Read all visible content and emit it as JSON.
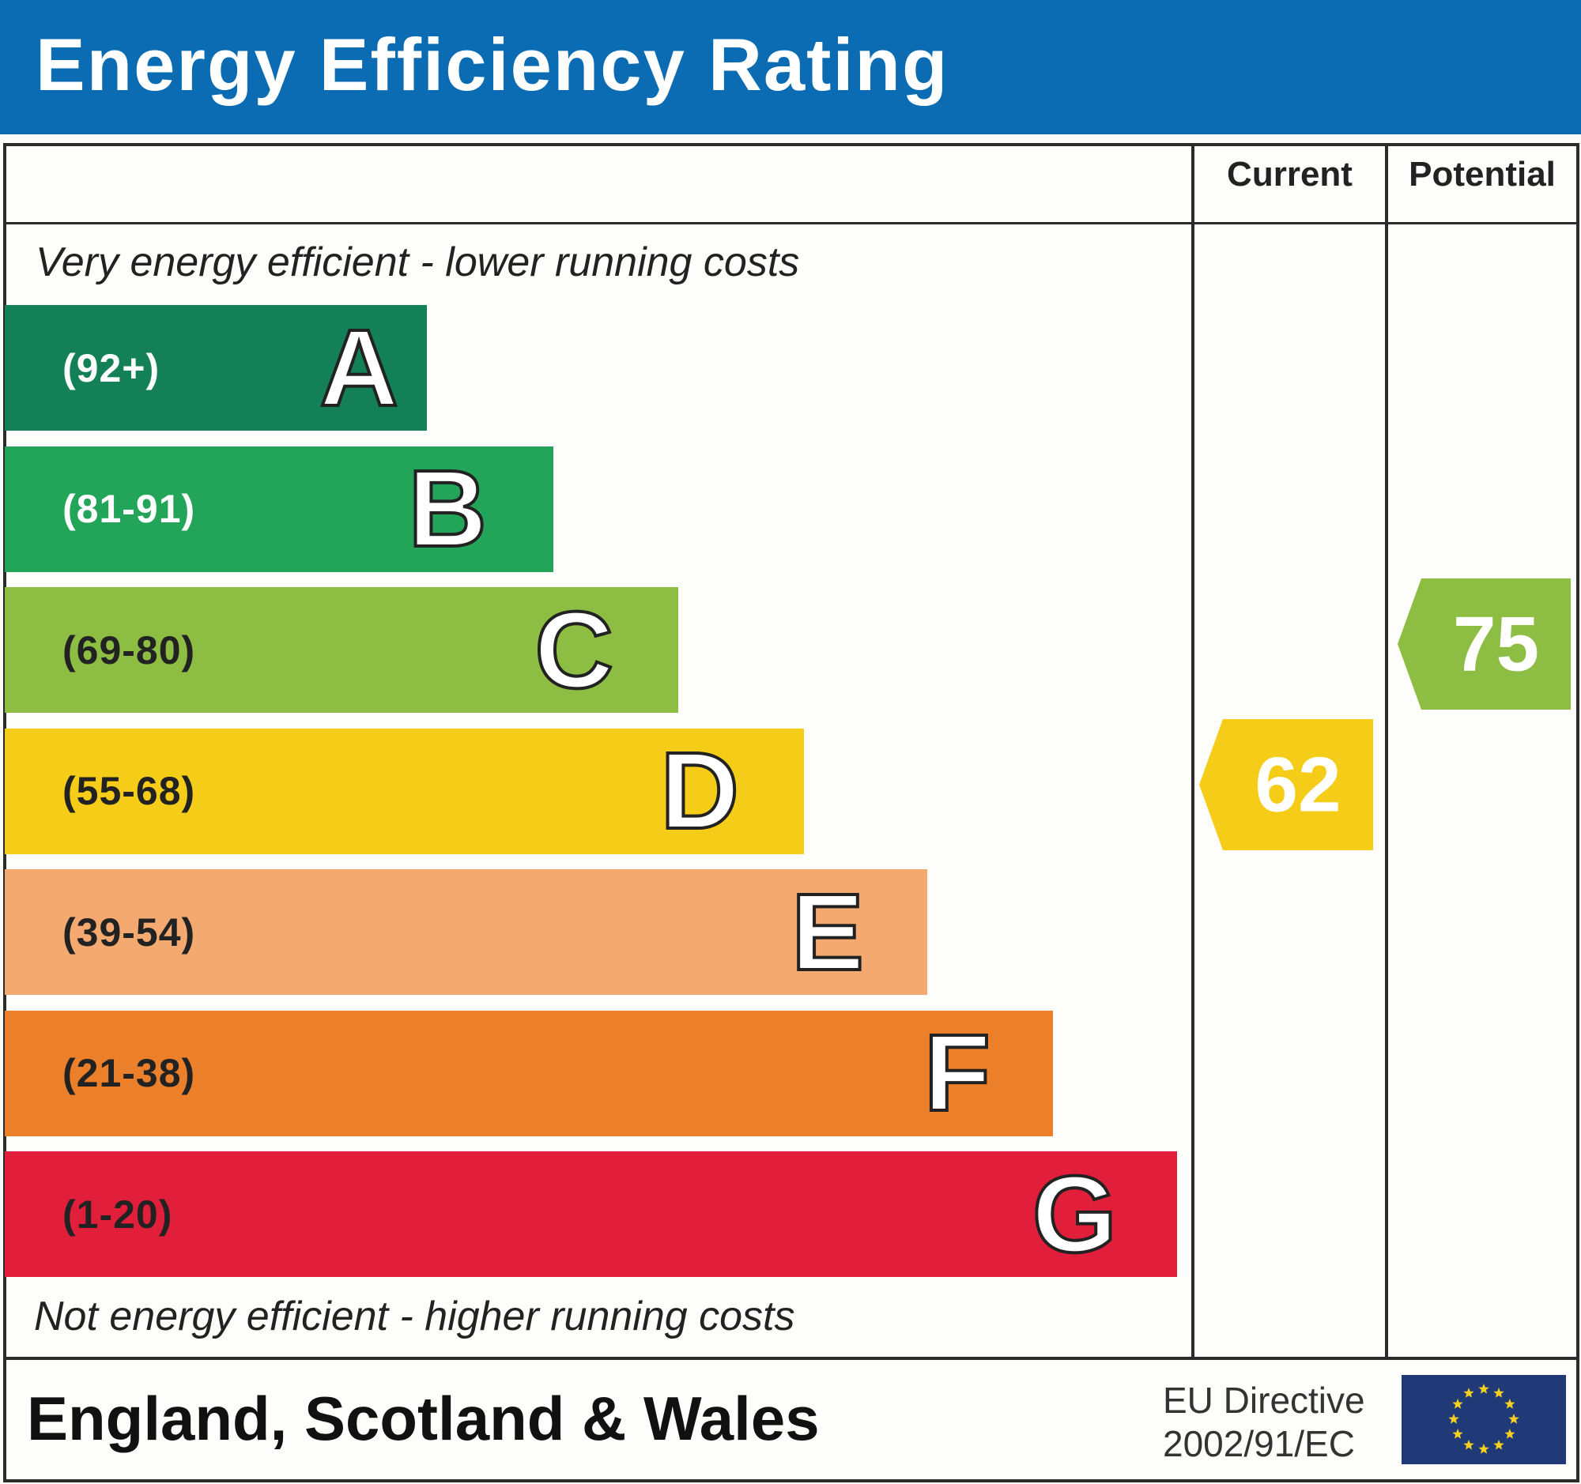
{
  "header": {
    "title": "Energy Efficiency Rating"
  },
  "columns": {
    "current": "Current",
    "potential": "Potential"
  },
  "notes": {
    "top": "Very energy efficient - lower running costs",
    "bottom": "Not energy efficient - higher running costs"
  },
  "footer": {
    "region": "England, Scotland & Wales",
    "directive_line1": "EU Directive",
    "directive_line2": "2002/91/EC",
    "flag_icon": "eu-flag-icon"
  },
  "chart_data": {
    "type": "bar",
    "title": "Energy Efficiency Rating",
    "categories": [
      "A",
      "B",
      "C",
      "D",
      "E",
      "F",
      "G"
    ],
    "ranges": [
      "(92+)",
      "(81-91)",
      "(69-80)",
      "(55-68)",
      "(39-54)",
      "(21-38)",
      "(1-20)"
    ],
    "colors": [
      "#138058",
      "#23a559",
      "#8dbe43",
      "#f5cd18",
      "#f3a96f",
      "#ec7f2a",
      "#e21f3b"
    ],
    "range_text_colors": [
      "#ffffff",
      "#ffffff",
      "#222222",
      "#222222",
      "#222222",
      "#222222",
      "#222222"
    ],
    "current": {
      "value": 62,
      "band": "D",
      "color": "#f5cd18",
      "label": "62"
    },
    "potential": {
      "value": 75,
      "band": "C",
      "color": "#8dbe43",
      "label": "75"
    }
  }
}
